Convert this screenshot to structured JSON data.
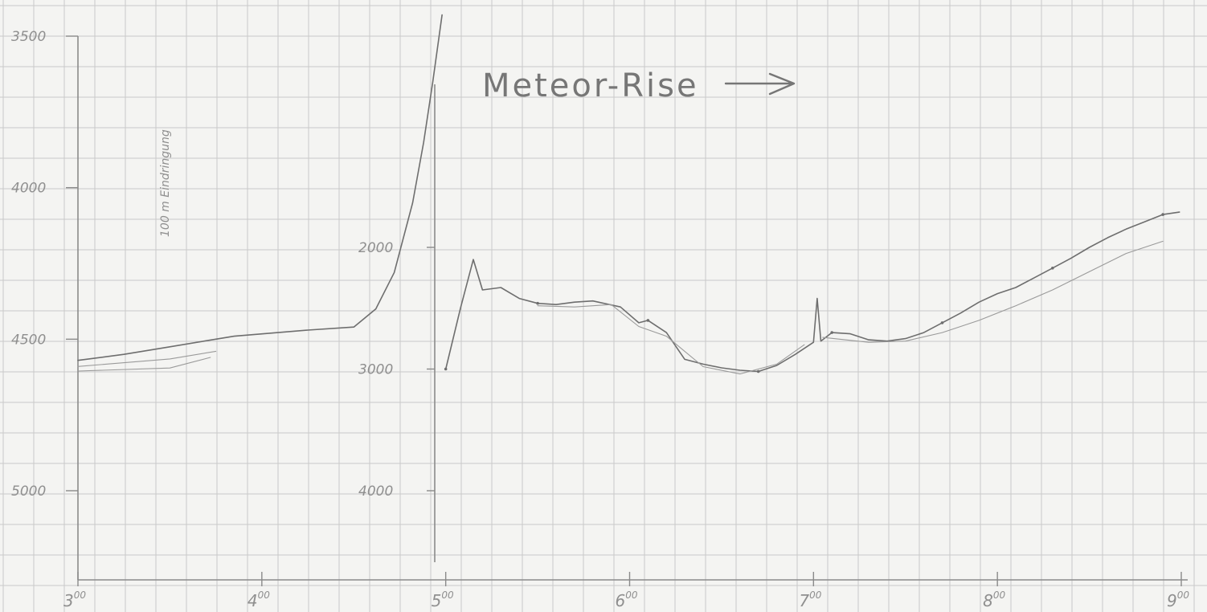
{
  "chart_data": [
    {
      "type": "line",
      "title": "",
      "xlabel": "",
      "ylabel": "",
      "y_inverted": true,
      "grid": true,
      "ylim": [
        3500,
        5150
      ],
      "xlim": [
        3.0,
        9.0
      ],
      "y_ticks": [
        {
          "value": 3500,
          "label": "3500"
        },
        {
          "value": 4000,
          "label": "4000"
        },
        {
          "value": 4500,
          "label": "4500"
        },
        {
          "value": 5000,
          "label": "5000"
        }
      ],
      "x_ticks": [
        {
          "value": 3,
          "label": "3",
          "sup": "00"
        },
        {
          "value": 4,
          "label": "4",
          "sup": "00"
        },
        {
          "value": 5,
          "label": "5",
          "sup": "00"
        },
        {
          "value": 6,
          "label": "6",
          "sup": "00"
        },
        {
          "value": 7,
          "label": "7",
          "sup": "00"
        },
        {
          "value": 8,
          "label": "8",
          "sup": "00"
        },
        {
          "value": 9,
          "label": "9",
          "sup": "00"
        }
      ],
      "annotation": "100 m Eindringung",
      "series": [
        {
          "x": [
            3.0,
            3.25,
            3.5,
            3.75,
            3.85,
            4.25,
            4.5,
            4.62,
            4.72,
            4.82,
            4.88,
            4.93,
            4.98
          ],
          "y": [
            4570,
            4550,
            4525,
            4500,
            4490,
            4470,
            4460,
            4400,
            4280,
            4050,
            3850,
            3650,
            3430
          ]
        },
        {
          "x": [
            3.0,
            3.5,
            3.75
          ],
          "y": [
            4590,
            4565,
            4540
          ]
        },
        {
          "x": [
            3.0,
            3.5,
            3.72
          ],
          "y": [
            4605,
            4595,
            4560
          ]
        }
      ]
    },
    {
      "type": "line",
      "title": "Meteor-Rise",
      "xlabel": "",
      "ylabel": "",
      "y_inverted": true,
      "grid": true,
      "ylim": [
        1500,
        4500
      ],
      "xlim": [
        5.0,
        9.0
      ],
      "y_ticks": [
        {
          "value": 2000,
          "label": "2000"
        },
        {
          "value": 3000,
          "label": "3000"
        },
        {
          "value": 4000,
          "label": "4000"
        }
      ],
      "series": [
        {
          "x": [
            5.0,
            5.08,
            5.15,
            5.2,
            5.3,
            5.4,
            5.5,
            5.6,
            5.7,
            5.8,
            5.95,
            6.05,
            6.1,
            6.2,
            6.3,
            6.4,
            6.5,
            6.6,
            6.7,
            6.8,
            6.9,
            7.0,
            7.02,
            7.04,
            7.1,
            7.2,
            7.3,
            7.4,
            7.5,
            7.6,
            7.7,
            7.8,
            7.9,
            8.0,
            8.1,
            8.2,
            8.3,
            8.4,
            8.5,
            8.6,
            8.7,
            8.8,
            8.9,
            8.99
          ],
          "y": [
            3000,
            2500,
            2100,
            2350,
            2330,
            2420,
            2460,
            2470,
            2450,
            2440,
            2490,
            2620,
            2600,
            2700,
            2920,
            2960,
            2990,
            3010,
            3020,
            2970,
            2880,
            2780,
            2420,
            2770,
            2700,
            2710,
            2760,
            2770,
            2750,
            2700,
            2620,
            2540,
            2450,
            2380,
            2330,
            2250,
            2170,
            2090,
            2000,
            1920,
            1850,
            1790,
            1730,
            1710
          ]
        },
        {
          "x": [
            5.5,
            5.7,
            5.9,
            6.05,
            6.2,
            6.4,
            6.6,
            6.8,
            6.95
          ],
          "y": [
            2480,
            2490,
            2470,
            2650,
            2730,
            2980,
            3040,
            2960,
            2800
          ]
        },
        {
          "x": [
            7.05,
            7.3,
            7.5,
            7.7,
            7.9,
            8.1,
            8.3,
            8.5,
            8.7,
            8.9
          ],
          "y": [
            2740,
            2780,
            2770,
            2700,
            2600,
            2480,
            2350,
            2200,
            2050,
            1950
          ]
        }
      ]
    }
  ]
}
